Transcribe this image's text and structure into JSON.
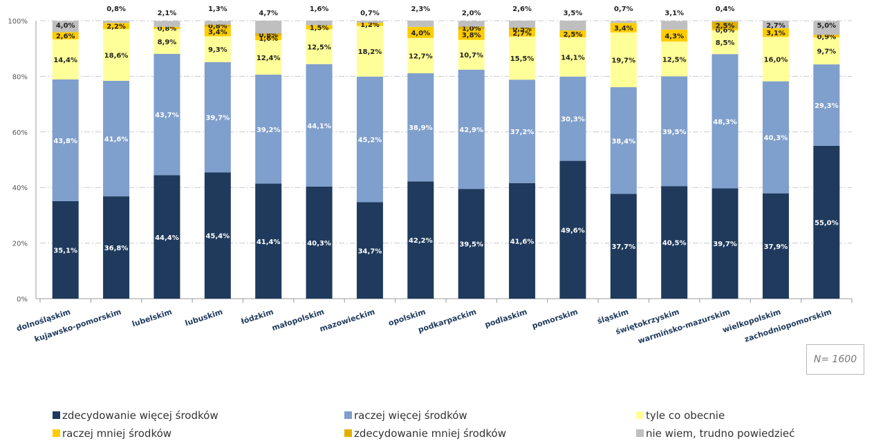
{
  "chart_data": {
    "type": "bar",
    "stacked": true,
    "orientation": "vertical",
    "categories": [
      "dolnośląskim",
      "kujawsko-pomorskim",
      "lubelskim",
      "lubuskim",
      "łódzkim",
      "małopolskim",
      "mazowieckim",
      "opolskim",
      "podkarpackim",
      "podlaskim",
      "pomorskim",
      "śląskim",
      "świętokrzyskim",
      "warmińsko-mazurskim",
      "wielkopolskim",
      "zachodniopomorskim"
    ],
    "series": [
      {
        "name": "zdecydowanie więcej środków",
        "color": "#1f3a5c",
        "values": [
          35.1,
          36.8,
          44.4,
          45.4,
          41.4,
          40.3,
          34.7,
          42.2,
          39.5,
          41.6,
          49.6,
          37.7,
          40.5,
          39.7,
          37.9,
          55.0
        ],
        "labels": [
          "35,1%",
          "36,8%",
          "44,4%",
          "45,4%",
          "41,4%",
          "40,3%",
          "34,7%",
          "42,2%",
          "39,5%",
          "41,6%",
          "49,6%",
          "37,7%",
          "40,5%",
          "39,7%",
          "37,9%",
          "55,0%"
        ]
      },
      {
        "name": "raczej więcej środków",
        "color": "#7f9fcc",
        "values": [
          43.8,
          41.6,
          43.7,
          39.7,
          39.2,
          44.1,
          45.2,
          38.9,
          42.9,
          37.2,
          30.3,
          38.4,
          39.5,
          48.3,
          40.3,
          29.3
        ],
        "labels": [
          "43,8%",
          "41,6%",
          "43,7%",
          "39,7%",
          "39,2%",
          "44,1%",
          "45,2%",
          "38,9%",
          "42,9%",
          "37,2%",
          "30,3%",
          "38,4%",
          "39,5%",
          "48,3%",
          "40,3%",
          "29,3%"
        ]
      },
      {
        "name": "tyle co obecnie",
        "color": "#ffff99",
        "values": [
          14.4,
          18.6,
          8.9,
          9.3,
          12.4,
          12.5,
          18.2,
          12.7,
          10.7,
          15.5,
          14.1,
          19.7,
          12.5,
          8.5,
          16.0,
          9.7
        ],
        "labels": [
          "14,4%",
          "18,6%",
          "8,9%",
          "9,3%",
          "12,4%",
          "12,5%",
          "18,2%",
          "12,7%",
          "10,7%",
          "15,5%",
          "14,1%",
          "19,7%",
          "12,5%",
          "8,5%",
          "16,0%",
          "9,7%"
        ]
      },
      {
        "name": "raczej mniej środków",
        "color": "#ffcc00",
        "values": [
          2.6,
          2.2,
          0.8,
          3.4,
          1.6,
          1.5,
          1.2,
          4.0,
          3.8,
          2.7,
          2.5,
          3.4,
          4.3,
          0.6,
          3.1,
          0.9
        ],
        "labels": [
          "2,6%",
          "2,2%",
          "0,8%",
          "3,4%",
          "1,6%",
          "1,5%",
          "1,2%",
          "4,0%",
          "3,8%",
          "2,7%",
          "2,5%",
          "3,4%",
          "4,3%",
          "0,6%",
          "3,1%",
          "0,9%"
        ]
      },
      {
        "name": "zdecydowanie mniej środków",
        "color": "#e0b000",
        "values": [
          0,
          0,
          0,
          0.8,
          0.8,
          0,
          0,
          0,
          1.0,
          0.5,
          0,
          0,
          0,
          2.5,
          0,
          0
        ],
        "labels": [
          "",
          "",
          "",
          "0,8%",
          "0,8%",
          "",
          "",
          "",
          "1,0%",
          "0,5%",
          "",
          "",
          "",
          "2,5%",
          "",
          ""
        ]
      },
      {
        "name": "nie wiem, trudno powiedzieć",
        "color": "#bfbfbf",
        "values": [
          4.0,
          0.8,
          2.1,
          1.3,
          4.7,
          1.6,
          0.7,
          2.3,
          2.0,
          2.6,
          3.5,
          0.7,
          3.1,
          0.4,
          2.7,
          5.0
        ],
        "labels": [
          "4,0%",
          "0,8%",
          "2,1%",
          "1,3%",
          "4,7%",
          "1,6%",
          "0,7%",
          "2,3%",
          "2,0%",
          "2,6%",
          "3,5%",
          "0,7%",
          "3,1%",
          "0,4%",
          "2,7%",
          "5,0%"
        ]
      }
    ],
    "ylim": [
      0,
      100
    ],
    "yticks": [
      "0%",
      "20%",
      "40%",
      "60%",
      "80%",
      "100%"
    ],
    "grid": true,
    "legend_position": "bottom",
    "annotation": "N= 1600"
  }
}
